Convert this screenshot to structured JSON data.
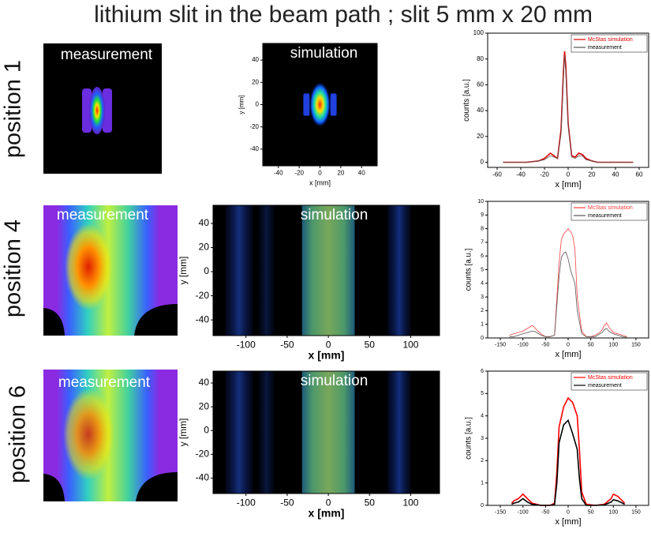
{
  "title": "lithium slit in the beam path ; slit 5 mm x 20 mm",
  "rows": [
    {
      "label": "position  1",
      "measurement": "measurement"
    },
    {
      "label": "position  4",
      "measurement": "measurement"
    },
    {
      "label": "position  6",
      "measurement": "measurement"
    }
  ],
  "chart_data": [
    {
      "type": "image",
      "title": "simulation",
      "xlabel": "x [mm]",
      "ylabel": "y [mm]",
      "xlim": [
        -55,
        55
      ],
      "xticks": [
        -40,
        -20,
        0,
        20,
        40
      ],
      "ylim": [
        -55,
        55
      ],
      "yticks": [
        -40,
        -20,
        0,
        20,
        40
      ]
    },
    {
      "type": "line",
      "xlabel": "x [mm]",
      "ylabel": "counts [a.u.]",
      "legend": "upper right",
      "xlim": [
        -68,
        68
      ],
      "xticks": [
        -60,
        -40,
        -20,
        0,
        20,
        40,
        60
      ],
      "ylim": [
        -4,
        100
      ],
      "yticks": [
        0,
        20,
        40,
        60,
        80,
        100
      ],
      "x": [
        -55,
        -45,
        -35,
        -25,
        -20,
        -15,
        -12,
        -9,
        -6,
        -4,
        -3,
        -2,
        0,
        3,
        6,
        9,
        12,
        15,
        20,
        25,
        35,
        45,
        55
      ],
      "series": [
        {
          "name": "McStas simulation",
          "color": "#e00000",
          "values": [
            0,
            0,
            0,
            1,
            3,
            7,
            5,
            3,
            25,
            70,
            86,
            75,
            30,
            5,
            4,
            7,
            6,
            3,
            1,
            0,
            0,
            0,
            0
          ]
        },
        {
          "name": "measurement",
          "color": "#555555",
          "values": [
            0,
            0,
            0,
            1,
            2,
            5,
            4,
            3,
            22,
            65,
            83,
            70,
            28,
            4,
            3,
            5,
            5,
            2,
            1,
            0,
            0,
            0,
            0
          ]
        }
      ]
    },
    {
      "type": "image",
      "title": "simulation",
      "xlabel": "x [mm]",
      "ylabel": "y [mm]",
      "xlim": [
        -140,
        135
      ],
      "xticks": [
        -100,
        -50,
        0,
        50,
        100
      ],
      "ylim": [
        -53,
        55
      ],
      "yticks": [
        -40,
        -20,
        0,
        20,
        40
      ]
    },
    {
      "type": "line",
      "xlabel": "x [mm]",
      "ylabel": "counts [a.u.]",
      "legend": "upper right",
      "xlim": [
        -178,
        178
      ],
      "xticks": [
        -150,
        -100,
        -50,
        0,
        50,
        100,
        150
      ],
      "ylim": [
        0,
        10
      ],
      "yticks": [
        0,
        1,
        2,
        3,
        4,
        5,
        6,
        7,
        8,
        9,
        10
      ],
      "x": [
        -130,
        -120,
        -110,
        -100,
        -90,
        -80,
        -75,
        -70,
        -60,
        -50,
        -40,
        -30,
        -20,
        -15,
        -10,
        -5,
        0,
        5,
        10,
        15,
        20,
        30,
        40,
        50,
        60,
        70,
        75,
        80,
        85,
        90,
        100,
        110,
        120,
        130
      ],
      "series": [
        {
          "name": "McStas simulation",
          "color": "#ff4040",
          "values": [
            0.2,
            0.3,
            0.4,
            0.5,
            0.7,
            0.9,
            0.8,
            0.6,
            0.3,
            0.1,
            0.1,
            0.2,
            5.5,
            7.2,
            7.6,
            7.8,
            8.0,
            7.8,
            7.5,
            6.5,
            3,
            0.5,
            0.1,
            0.1,
            0.2,
            0.4,
            0.6,
            0.9,
            1.1,
            0.8,
            0.4,
            0.3,
            0.2,
            0.1
          ]
        },
        {
          "name": "measurement",
          "color": "#555555",
          "values": [
            0.1,
            0.1,
            0.2,
            0.3,
            0.4,
            0.5,
            0.5,
            0.4,
            0.2,
            0.1,
            0.1,
            0.2,
            4.5,
            5.9,
            6.2,
            6.3,
            5.8,
            5,
            4.5,
            4,
            2,
            0.3,
            0.1,
            0.1,
            0.1,
            0.3,
            0.4,
            0.6,
            0.7,
            0.5,
            0.3,
            0.2,
            0.1,
            0.05
          ]
        }
      ]
    },
    {
      "type": "image",
      "title": "simulation",
      "xlabel": "x [mm]",
      "ylabel": "y [mm]",
      "xlim": [
        -140,
        135
      ],
      "xticks": [
        -100,
        -50,
        0,
        50,
        100
      ],
      "ylim": [
        -53,
        50
      ],
      "yticks": [
        -40,
        -20,
        0,
        20,
        40
      ]
    },
    {
      "type": "line",
      "xlabel": "x [mm]",
      "ylabel": "counts [a.u.]",
      "legend": "upper right",
      "xlim": [
        -178,
        178
      ],
      "xticks": [
        -150,
        -100,
        -50,
        0,
        50,
        100,
        150
      ],
      "ylim": [
        0,
        6
      ],
      "yticks": [
        0,
        1,
        2,
        3,
        4,
        5,
        6
      ],
      "x": [
        -125,
        -120,
        -110,
        -100,
        -90,
        -80,
        -60,
        -40,
        -30,
        -25,
        -20,
        -10,
        0,
        10,
        20,
        25,
        30,
        40,
        60,
        80,
        95,
        100,
        110,
        120,
        125
      ],
      "series": [
        {
          "name": "McStas simulation",
          "color": "#ff0000",
          "values": [
            0.1,
            0.2,
            0.3,
            0.5,
            0.3,
            0.1,
            0,
            0,
            0.1,
            1.5,
            3.5,
            4.4,
            4.8,
            4.6,
            4.0,
            2.5,
            0.6,
            0.05,
            0,
            0.05,
            0.3,
            0.5,
            0.4,
            0.2,
            0.1
          ]
        },
        {
          "name": "measurement",
          "color": "#000000",
          "values": [
            0.05,
            0.1,
            0.15,
            0.3,
            0.15,
            0.05,
            0,
            0,
            0.05,
            1,
            2.8,
            3.6,
            3.8,
            3.2,
            2.5,
            1.2,
            0.3,
            0,
            0,
            0.02,
            0.15,
            0.25,
            0.2,
            0.1,
            0.05
          ]
        }
      ]
    }
  ]
}
